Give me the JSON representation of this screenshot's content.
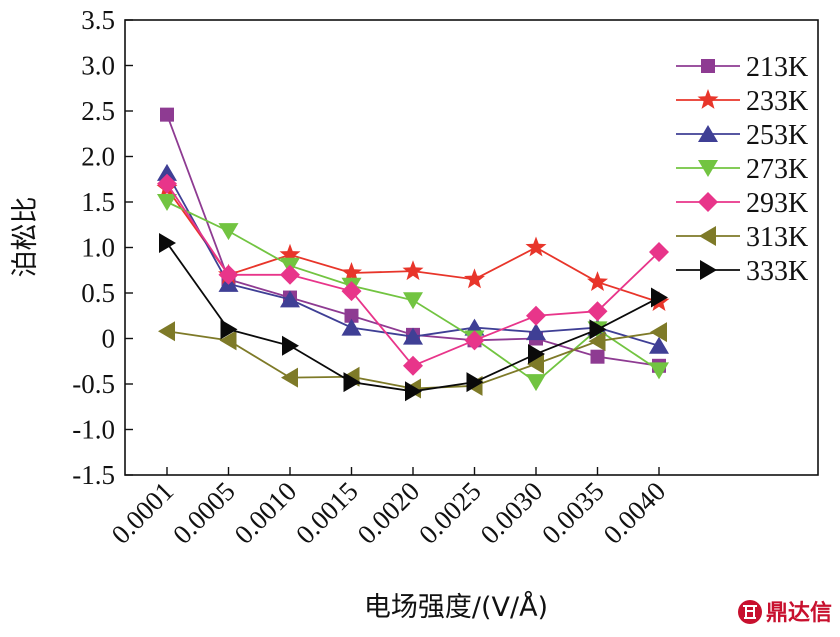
{
  "chart_data": {
    "type": "line",
    "title": "",
    "xlabel": "电场强度/(V/Å)",
    "ylabel": "泊松比",
    "x": [
      "0.0001",
      "0.0005",
      "0.0010",
      "0.0015",
      "0.0020",
      "0.0025",
      "0.0030",
      "0.0035",
      "0.0040"
    ],
    "ylim": [
      -1.5,
      3.5
    ],
    "yticks": [
      "-1.5",
      "-1.0",
      "-0.5",
      "0",
      "0.5",
      "1.0",
      "1.5",
      "2.0",
      "2.5",
      "3.0",
      "3.5"
    ],
    "ytick_values": [
      -1.5,
      -1.0,
      -0.5,
      0,
      0.5,
      1.0,
      1.5,
      2.0,
      2.5,
      3.0,
      3.5
    ],
    "grid": false,
    "legend_position": "top-right",
    "series": [
      {
        "name": "213K",
        "color": "#8e3b92",
        "marker": "square",
        "values": [
          2.46,
          0.65,
          0.45,
          0.25,
          0.04,
          -0.02,
          0.0,
          -0.2,
          -0.3
        ]
      },
      {
        "name": "233K",
        "color": "#e8352a",
        "marker": "star",
        "values": [
          1.65,
          0.7,
          0.92,
          0.72,
          0.74,
          0.65,
          1.0,
          0.62,
          0.4
        ]
      },
      {
        "name": "253K",
        "color": "#3f3f95",
        "marker": "triangle-up",
        "values": [
          1.82,
          0.6,
          0.43,
          0.12,
          0.02,
          0.12,
          0.07,
          0.12,
          -0.08
        ]
      },
      {
        "name": "273K",
        "color": "#72c441",
        "marker": "triangle-down",
        "values": [
          1.5,
          1.18,
          0.8,
          0.58,
          0.42,
          0.0,
          -0.48,
          0.1,
          -0.35
        ]
      },
      {
        "name": "293K",
        "color": "#e8358a",
        "marker": "diamond",
        "values": [
          1.7,
          0.7,
          0.7,
          0.52,
          -0.3,
          -0.02,
          0.25,
          0.3,
          0.95
        ]
      },
      {
        "name": "313K",
        "color": "#7e7a28",
        "marker": "triangle-left",
        "values": [
          0.08,
          -0.02,
          -0.43,
          -0.42,
          -0.55,
          -0.52,
          -0.28,
          -0.03,
          0.07
        ]
      },
      {
        "name": "333K",
        "color": "#0a0a0a",
        "marker": "triangle-right",
        "values": [
          1.05,
          0.1,
          -0.08,
          -0.48,
          -0.58,
          -0.48,
          -0.17,
          0.1,
          0.45
        ]
      }
    ]
  },
  "watermark": {
    "icon": "logo-icon",
    "text": "鼎达信"
  }
}
